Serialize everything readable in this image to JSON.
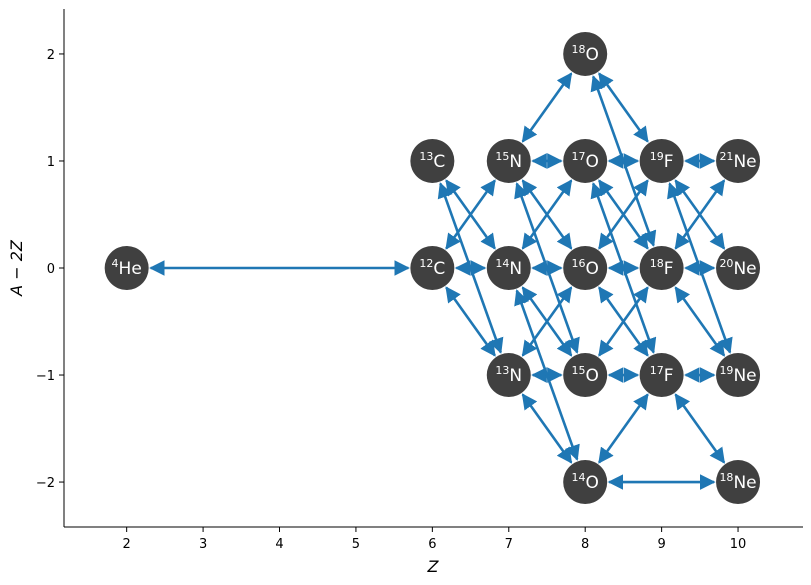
{
  "chart_data": {
    "type": "network",
    "xlabel": "Z",
    "ylabel": "A − 2Z",
    "xlim": [
      1.18,
      10.85
    ],
    "ylim": [
      -2.42,
      2.42
    ],
    "xticks": [
      2,
      3,
      4,
      5,
      6,
      7,
      8,
      9,
      10
    ],
    "yticks": [
      2,
      1,
      0,
      -1,
      -2
    ],
    "ytick_labels": [
      "2",
      "1",
      "0",
      "−1",
      "−2"
    ],
    "colors": {
      "node": "#404040",
      "edge": "#1f77b4",
      "axis": "#000000"
    },
    "nodes": [
      {
        "id": "he4",
        "mass": "4",
        "symbol": "He",
        "z": 2,
        "n_minus_z": 0
      },
      {
        "id": "c12",
        "mass": "12",
        "symbol": "C",
        "z": 6,
        "n_minus_z": 0
      },
      {
        "id": "c13",
        "mass": "13",
        "symbol": "C",
        "z": 6,
        "n_minus_z": 1
      },
      {
        "id": "n13",
        "mass": "13",
        "symbol": "N",
        "z": 7,
        "n_minus_z": -1
      },
      {
        "id": "n14",
        "mass": "14",
        "symbol": "N",
        "z": 7,
        "n_minus_z": 0
      },
      {
        "id": "n15",
        "mass": "15",
        "symbol": "N",
        "z": 7,
        "n_minus_z": 1
      },
      {
        "id": "o14",
        "mass": "14",
        "symbol": "O",
        "z": 8,
        "n_minus_z": -2
      },
      {
        "id": "o15",
        "mass": "15",
        "symbol": "O",
        "z": 8,
        "n_minus_z": -1
      },
      {
        "id": "o16",
        "mass": "16",
        "symbol": "O",
        "z": 8,
        "n_minus_z": 0
      },
      {
        "id": "o17",
        "mass": "17",
        "symbol": "O",
        "z": 8,
        "n_minus_z": 1
      },
      {
        "id": "o18",
        "mass": "18",
        "symbol": "O",
        "z": 8,
        "n_minus_z": 2
      },
      {
        "id": "f17",
        "mass": "17",
        "symbol": "F",
        "z": 9,
        "n_minus_z": -1
      },
      {
        "id": "f18",
        "mass": "18",
        "symbol": "F",
        "z": 9,
        "n_minus_z": 0
      },
      {
        "id": "f19",
        "mass": "19",
        "symbol": "F",
        "z": 9,
        "n_minus_z": 1
      },
      {
        "id": "ne18",
        "mass": "18",
        "symbol": "Ne",
        "z": 10,
        "n_minus_z": -2
      },
      {
        "id": "ne19",
        "mass": "19",
        "symbol": "Ne",
        "z": 10,
        "n_minus_z": -1
      },
      {
        "id": "ne20",
        "mass": "20",
        "symbol": "Ne",
        "z": 10,
        "n_minus_z": 0
      },
      {
        "id": "ne21",
        "mass": "21",
        "symbol": "Ne",
        "z": 10,
        "n_minus_z": 1
      }
    ],
    "edges": [
      [
        "he4",
        "c12"
      ],
      [
        "c12",
        "n14"
      ],
      [
        "c12",
        "n13"
      ],
      [
        "c12",
        "n15"
      ],
      [
        "c13",
        "n14"
      ],
      [
        "c13",
        "n13"
      ],
      [
        "n13",
        "o14"
      ],
      [
        "n13",
        "o16"
      ],
      [
        "n13",
        "o15"
      ],
      [
        "n14",
        "o16"
      ],
      [
        "n14",
        "o15"
      ],
      [
        "n14",
        "o17"
      ],
      [
        "n14",
        "o14"
      ],
      [
        "n15",
        "o17"
      ],
      [
        "n15",
        "o18"
      ],
      [
        "n15",
        "o16"
      ],
      [
        "n15",
        "o15"
      ],
      [
        "o14",
        "f17"
      ],
      [
        "o14",
        "ne18"
      ],
      [
        "o15",
        "f17"
      ],
      [
        "o15",
        "f18"
      ],
      [
        "o16",
        "f17"
      ],
      [
        "o16",
        "f18"
      ],
      [
        "o16",
        "f19"
      ],
      [
        "o17",
        "f19"
      ],
      [
        "o17",
        "f18"
      ],
      [
        "o17",
        "f17"
      ],
      [
        "o18",
        "f19"
      ],
      [
        "o18",
        "f18"
      ],
      [
        "f17",
        "ne19"
      ],
      [
        "f17",
        "ne18"
      ],
      [
        "f18",
        "ne20"
      ],
      [
        "f18",
        "ne19"
      ],
      [
        "f18",
        "ne21"
      ],
      [
        "f19",
        "ne21"
      ],
      [
        "f19",
        "ne20"
      ],
      [
        "f19",
        "ne19"
      ]
    ]
  }
}
